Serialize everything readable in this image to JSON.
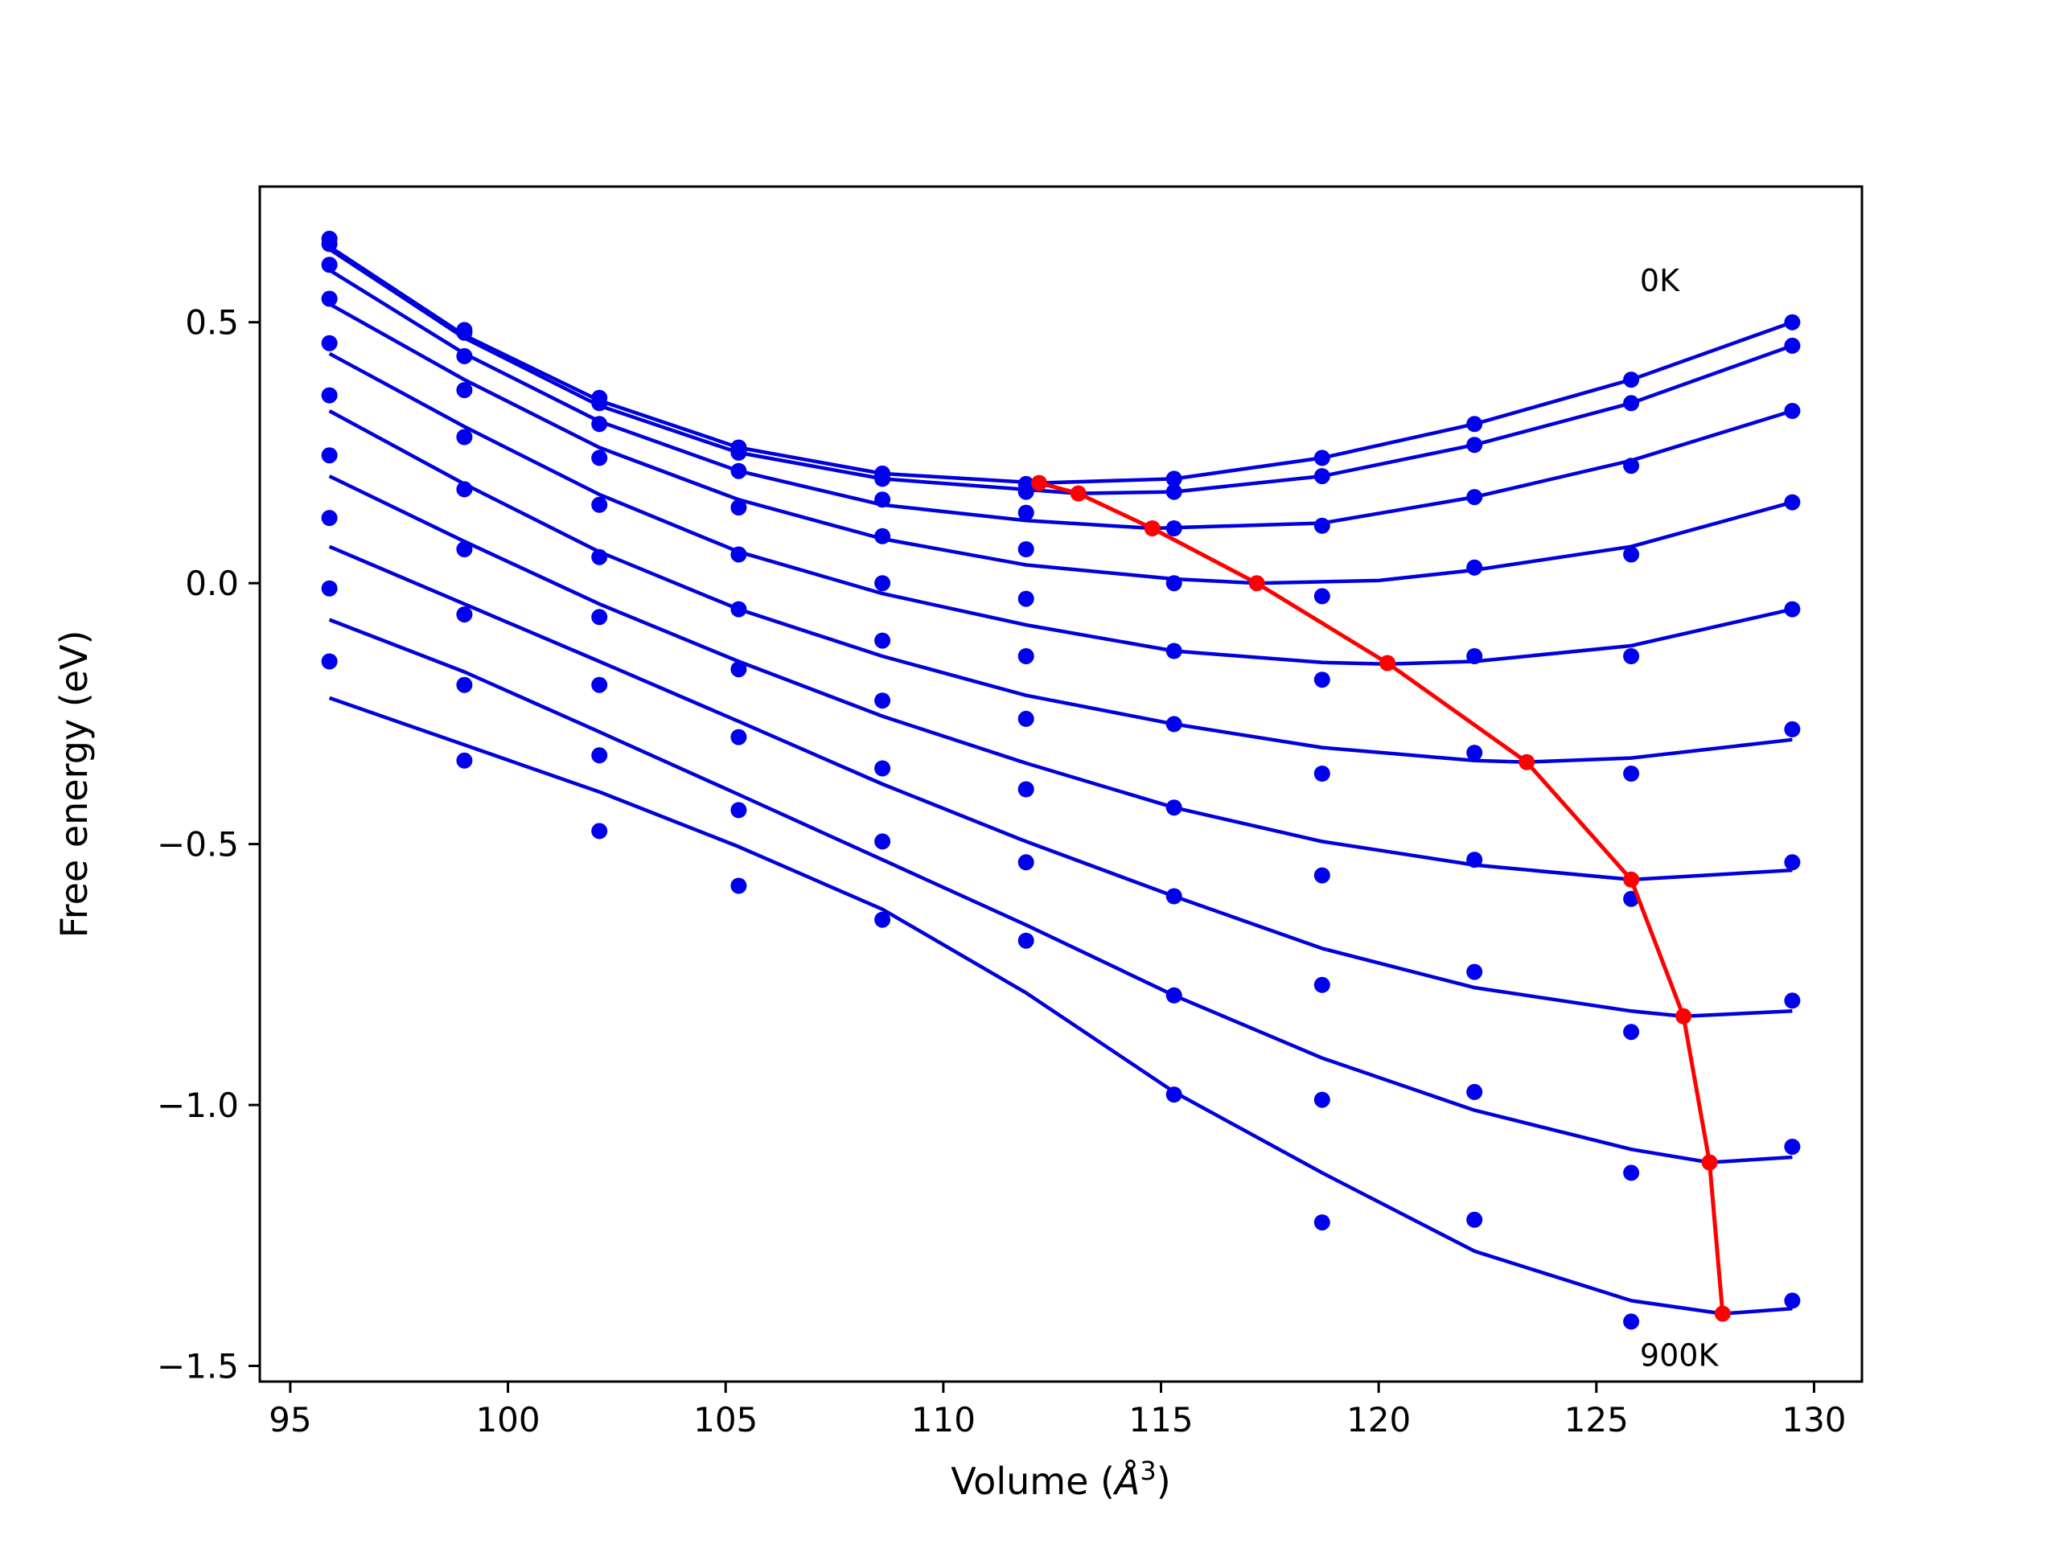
{
  "chart_data": {
    "type": "scatter",
    "xlabel": "Volume (Å³)",
    "xlabel_base": "Volume (",
    "xlabel_unit": "Å",
    "xlabel_exp": "3",
    "xlabel_close": ")",
    "ylabel": "Free energy (eV)",
    "xlim": [
      94.3,
      131.1
    ],
    "ylim": [
      -1.53,
      0.76
    ],
    "xticks": [
      95,
      100,
      105,
      110,
      115,
      120,
      125,
      130
    ],
    "xtick_labels": [
      "95",
      "100",
      "105",
      "110",
      "115",
      "120",
      "125",
      "130"
    ],
    "yticks": [
      -1.5,
      -1.0,
      -0.5,
      0.0,
      0.5
    ],
    "ytick_labels": [
      "−1.5",
      "−1.0",
      "−0.5",
      "0.0",
      "0.5"
    ],
    "grid": false,
    "annotations": [
      {
        "text": "0K",
        "x": 126.0,
        "y": 0.56
      },
      {
        "text": "900K",
        "x": 126.0,
        "y": -1.5
      }
    ],
    "colors": {
      "points": "#0000ee",
      "fits": "#0000dd",
      "minimum_path": "#ff0000",
      "axes": "#000000"
    },
    "volumes": [
      95.9,
      99.0,
      102.1,
      105.3,
      108.6,
      111.9,
      115.3,
      118.7,
      122.2,
      125.8,
      129.5
    ],
    "series": [
      {
        "name": "",
        "points": [
          0.66,
          0.485,
          0.355,
          0.26,
          0.21,
          0.19,
          0.2,
          0.24,
          0.305,
          0.39,
          0.5
        ],
        "fit": [
          [
            95.9,
            0.645
          ],
          [
            99.0,
            0.475
          ],
          [
            102.1,
            0.35
          ],
          [
            105.3,
            0.26
          ],
          [
            108.6,
            0.21
          ],
          [
            112.2,
            0.192
          ],
          [
            115.3,
            0.2
          ],
          [
            118.7,
            0.24
          ],
          [
            122.2,
            0.305
          ],
          [
            125.8,
            0.39
          ],
          [
            129.5,
            0.5
          ]
        ]
      },
      {
        "name": "",
        "points": [
          0.65,
          0.48,
          0.345,
          0.25,
          0.2,
          0.175,
          0.175,
          0.205,
          0.265,
          0.345,
          0.455
        ],
        "fit": [
          [
            95.9,
            0.64
          ],
          [
            99.0,
            0.47
          ],
          [
            102.1,
            0.34
          ],
          [
            105.3,
            0.25
          ],
          [
            108.6,
            0.2
          ],
          [
            113.1,
            0.172
          ],
          [
            115.3,
            0.175
          ],
          [
            118.7,
            0.205
          ],
          [
            122.2,
            0.265
          ],
          [
            125.8,
            0.345
          ],
          [
            129.5,
            0.455
          ]
        ]
      },
      {
        "name": "",
        "points": [
          0.61,
          0.435,
          0.305,
          0.215,
          0.16,
          0.135,
          0.105,
          0.11,
          0.165,
          0.225,
          0.33
        ],
        "fit": [
          [
            95.9,
            0.6
          ],
          [
            99.0,
            0.44
          ],
          [
            102.1,
            0.31
          ],
          [
            105.3,
            0.215
          ],
          [
            108.6,
            0.15
          ],
          [
            111.9,
            0.12
          ],
          [
            114.8,
            0.105
          ],
          [
            118.7,
            0.115
          ],
          [
            122.2,
            0.165
          ],
          [
            125.8,
            0.235
          ],
          [
            129.5,
            0.33
          ]
        ]
      },
      {
        "name": "",
        "points": [
          0.545,
          0.37,
          0.24,
          0.145,
          0.09,
          0.065,
          0.0,
          -0.025,
          0.03,
          0.055,
          0.155
        ],
        "fit": [
          [
            95.9,
            0.535
          ],
          [
            99.0,
            0.39
          ],
          [
            102.1,
            0.26
          ],
          [
            105.3,
            0.16
          ],
          [
            108.6,
            0.085
          ],
          [
            111.9,
            0.035
          ],
          [
            115.3,
            0.008
          ],
          [
            117.2,
            0.0
          ],
          [
            120.0,
            0.005
          ],
          [
            122.2,
            0.025
          ],
          [
            125.8,
            0.07
          ],
          [
            129.5,
            0.155
          ]
        ]
      },
      {
        "name": "",
        "points": [
          0.46,
          0.28,
          0.15,
          0.055,
          0.0,
          -0.03,
          -0.13,
          -0.185,
          -0.14,
          -0.14,
          -0.05
        ],
        "fit": [
          [
            95.9,
            0.44
          ],
          [
            99.0,
            0.3
          ],
          [
            102.1,
            0.17
          ],
          [
            105.3,
            0.06
          ],
          [
            108.6,
            -0.02
          ],
          [
            111.9,
            -0.08
          ],
          [
            115.3,
            -0.13
          ],
          [
            118.7,
            -0.152
          ],
          [
            120.2,
            -0.155
          ],
          [
            122.2,
            -0.15
          ],
          [
            125.8,
            -0.12
          ],
          [
            129.5,
            -0.05
          ]
        ]
      },
      {
        "name": "",
        "points": [
          0.36,
          0.18,
          0.05,
          -0.05,
          -0.11,
          -0.14,
          -0.27,
          -0.365,
          -0.325,
          -0.365,
          -0.28
        ],
        "fit": [
          [
            95.9,
            0.33
          ],
          [
            99.0,
            0.19
          ],
          [
            102.1,
            0.06
          ],
          [
            105.3,
            -0.05
          ],
          [
            108.6,
            -0.14
          ],
          [
            111.9,
            -0.215
          ],
          [
            115.3,
            -0.27
          ],
          [
            118.7,
            -0.315
          ],
          [
            122.2,
            -0.34
          ],
          [
            123.4,
            -0.343
          ],
          [
            125.8,
            -0.335
          ],
          [
            129.5,
            -0.3
          ]
        ]
      },
      {
        "name": "",
        "points": [
          0.245,
          0.065,
          -0.065,
          -0.165,
          -0.225,
          -0.26,
          -0.43,
          -0.56,
          -0.53,
          -0.605,
          -0.535
        ],
        "fit": [
          [
            95.9,
            0.205
          ],
          [
            99.0,
            0.08
          ],
          [
            102.1,
            -0.04
          ],
          [
            105.3,
            -0.15
          ],
          [
            108.6,
            -0.255
          ],
          [
            111.9,
            -0.345
          ],
          [
            115.3,
            -0.43
          ],
          [
            118.7,
            -0.495
          ],
          [
            122.2,
            -0.54
          ],
          [
            125.8,
            -0.568
          ],
          [
            129.5,
            -0.55
          ]
        ]
      },
      {
        "name": "",
        "points": [
          0.125,
          -0.06,
          -0.195,
          -0.295,
          -0.355,
          -0.395,
          -0.6,
          -0.77,
          -0.745,
          -0.86,
          -0.8
        ],
        "fit": [
          [
            95.9,
            0.07
          ],
          [
            99.0,
            -0.04
          ],
          [
            102.1,
            -0.15
          ],
          [
            105.3,
            -0.265
          ],
          [
            108.6,
            -0.385
          ],
          [
            111.9,
            -0.495
          ],
          [
            115.3,
            -0.6
          ],
          [
            118.7,
            -0.7
          ],
          [
            122.2,
            -0.775
          ],
          [
            125.8,
            -0.82
          ],
          [
            127.0,
            -0.83
          ],
          [
            129.5,
            -0.82
          ]
        ]
      },
      {
        "name": "",
        "points": [
          -0.01,
          -0.195,
          -0.33,
          -0.435,
          -0.495,
          -0.535,
          -0.79,
          -0.99,
          -0.975,
          -1.13,
          -1.08
        ],
        "fit": [
          [
            95.9,
            -0.07
          ],
          [
            99.0,
            -0.17
          ],
          [
            102.1,
            -0.285
          ],
          [
            105.3,
            -0.405
          ],
          [
            108.6,
            -0.53
          ],
          [
            111.9,
            -0.655
          ],
          [
            115.3,
            -0.79
          ],
          [
            118.7,
            -0.91
          ],
          [
            122.2,
            -1.01
          ],
          [
            125.8,
            -1.085
          ],
          [
            127.6,
            -1.11
          ],
          [
            129.5,
            -1.1
          ]
        ]
      },
      {
        "name": "",
        "points": [
          -0.15,
          -0.34,
          -0.475,
          -0.58,
          -0.645,
          -0.685,
          -0.98,
          -1.225,
          -1.22,
          -1.415,
          -1.375
        ],
        "fit": [
          [
            95.9,
            -0.22
          ],
          [
            99.0,
            -0.31
          ],
          [
            102.1,
            -0.4
          ],
          [
            105.3,
            -0.505
          ],
          [
            108.6,
            -0.625
          ],
          [
            111.9,
            -0.785
          ],
          [
            115.3,
            -0.975
          ],
          [
            118.7,
            -1.13
          ],
          [
            122.2,
            -1.28
          ],
          [
            125.8,
            -1.375
          ],
          [
            127.9,
            -1.4
          ],
          [
            129.5,
            -1.39
          ]
        ]
      }
    ],
    "minimum_path": {
      "name": "",
      "x": [
        112.2,
        113.1,
        114.8,
        117.2,
        120.2,
        123.4,
        125.8,
        127.0,
        127.6,
        127.9
      ],
      "y": [
        0.192,
        0.172,
        0.105,
        0.0,
        -0.153,
        -0.343,
        -0.568,
        -0.83,
        -1.11,
        -1.4
      ]
    }
  }
}
